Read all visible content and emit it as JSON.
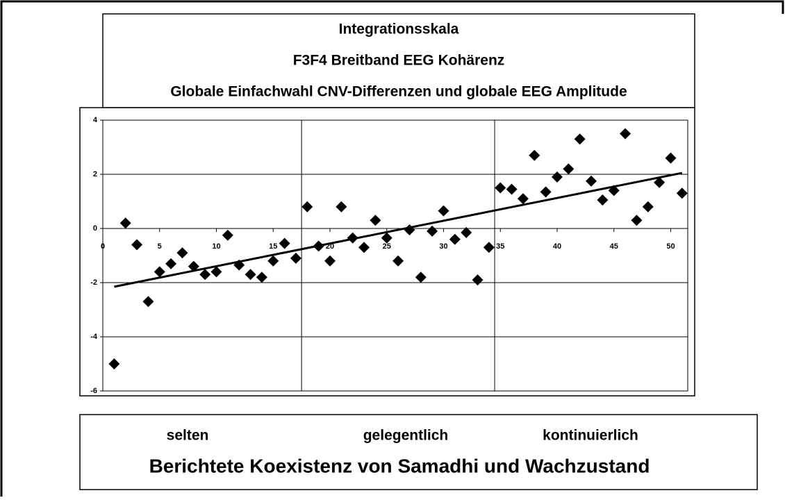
{
  "chart_data": {
    "type": "scatter",
    "title": [
      "Integrationsskala",
      "F3F4 Breitband EEG Kohärenz",
      "Globale Einfachwahl CNV-Differenzen und globale EEG Amplitude"
    ],
    "category_labels": [
      "selten",
      "gelegentlich",
      "kontinuierlich"
    ],
    "xlabel": "Berichtete Koexistenz von Samadhi und Wachzustand",
    "x": [
      1,
      2,
      3,
      4,
      5,
      6,
      7,
      8,
      9,
      10,
      11,
      12,
      13,
      14,
      15,
      16,
      17,
      18,
      19,
      20,
      21,
      22,
      23,
      24,
      25,
      26,
      27,
      28,
      29,
      30,
      31,
      32,
      33,
      34,
      35,
      36,
      37,
      38,
      39,
      40,
      41,
      42,
      43,
      44,
      45,
      46,
      47,
      48,
      49,
      50,
      51
    ],
    "values": [
      -5.0,
      0.2,
      -0.6,
      -2.7,
      -1.6,
      -1.3,
      -0.9,
      -1.4,
      -1.7,
      -1.6,
      -0.25,
      -1.35,
      -1.7,
      -1.8,
      -1.2,
      -0.55,
      -1.1,
      0.8,
      -0.65,
      -1.2,
      0.8,
      -0.35,
      -0.7,
      0.3,
      -0.35,
      -1.2,
      -0.05,
      -1.8,
      -0.1,
      0.65,
      -0.4,
      -0.15,
      -1.9,
      -0.7,
      1.5,
      1.45,
      1.1,
      2.7,
      1.35,
      1.9,
      2.2,
      3.3,
      1.75,
      1.05,
      1.4,
      3.5,
      0.3,
      0.8,
      1.7,
      2.6,
      1.3
    ],
    "color": "#000000",
    "trendline": {
      "x": [
        1,
        51
      ],
      "y": [
        -2.15,
        2.05
      ]
    },
    "xlim": [
      0,
      51.5
    ],
    "ylim": [
      -6,
      4
    ],
    "xticks": [
      0,
      5,
      10,
      15,
      20,
      25,
      30,
      35,
      40,
      45,
      50
    ],
    "yticks": [
      -6,
      -4,
      -2,
      0,
      2,
      4
    ],
    "xgrid": [
      17.5,
      34.5
    ],
    "grid": true
  }
}
